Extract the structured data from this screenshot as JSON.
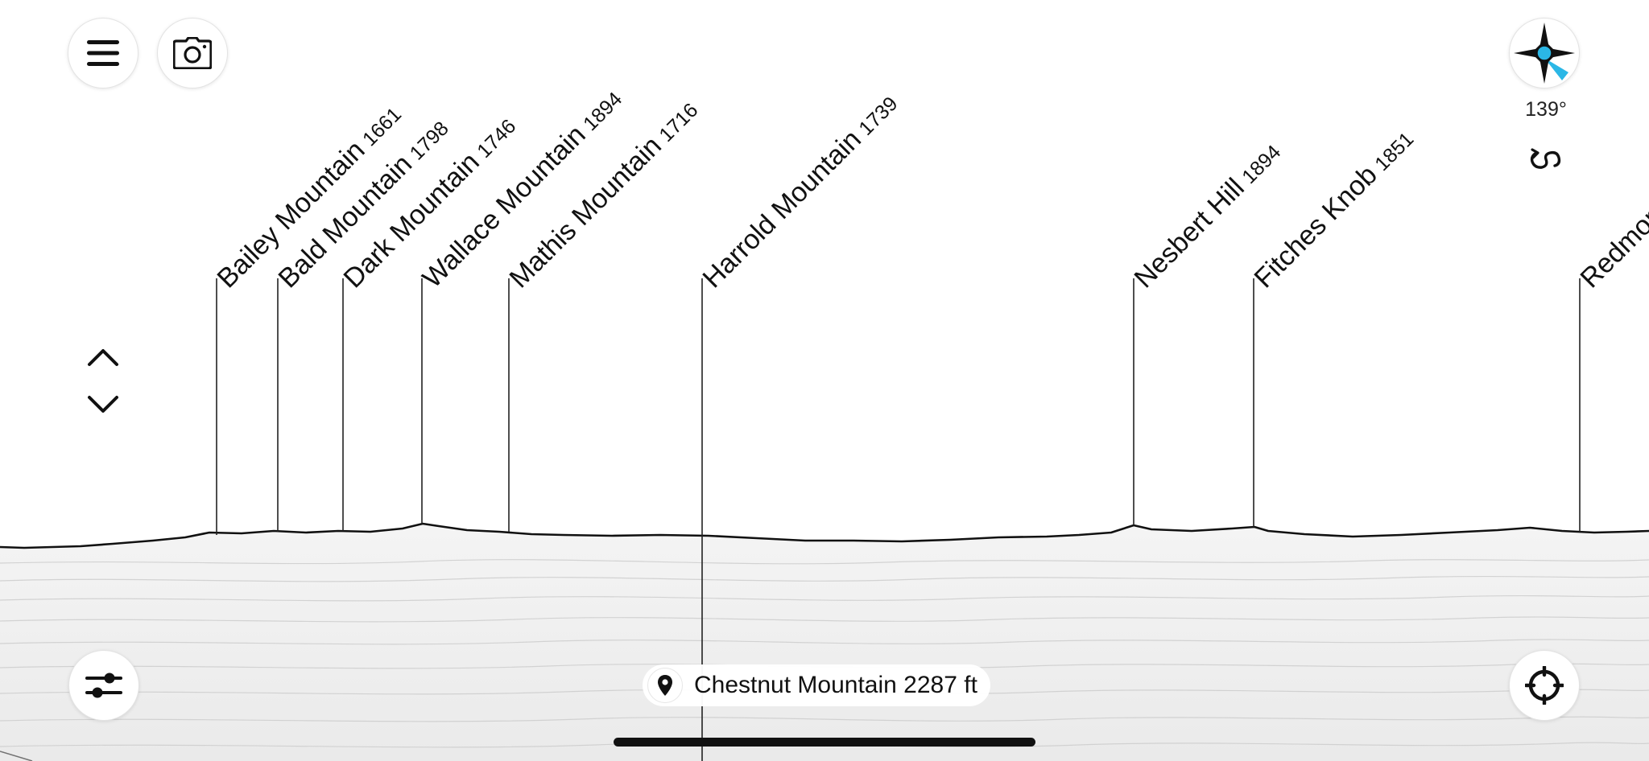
{
  "toolbar": {
    "menu_icon": "hamburger-menu-icon",
    "camera_icon": "camera-icon",
    "settings_icon": "sliders-icon",
    "recenter_icon": "crosshair-icon"
  },
  "compass": {
    "icon": "compass-rose-icon",
    "heading_label": "139°",
    "rotate_icon": "rotate-icon"
  },
  "elevation_controls": {
    "up_icon": "chevron-up-icon",
    "down_icon": "chevron-down-icon"
  },
  "peaks": [
    {
      "name": "Bailey Mountain",
      "elevation": "1661"
    },
    {
      "name": "Bald Mountain",
      "elevation": "1798"
    },
    {
      "name": "Dark Mountain",
      "elevation": "1746"
    },
    {
      "name": "Wallace Mountain",
      "elevation": "1894"
    },
    {
      "name": "Mathis Mountain",
      "elevation": "1716"
    },
    {
      "name": "Harrold Mountain",
      "elevation": "1739"
    },
    {
      "name": "Nesbert Hill",
      "elevation": "1894"
    },
    {
      "name": "Fitches Knob",
      "elevation": "1851"
    },
    {
      "name": "Redmon",
      "elevation": ""
    }
  ],
  "location": {
    "icon": "location-pin-icon",
    "label": "Chestnut Mountain 2287 ft"
  },
  "colors": {
    "compass_accent": "#2bb7e6",
    "ink": "#111111",
    "background": "#ffffff"
  }
}
